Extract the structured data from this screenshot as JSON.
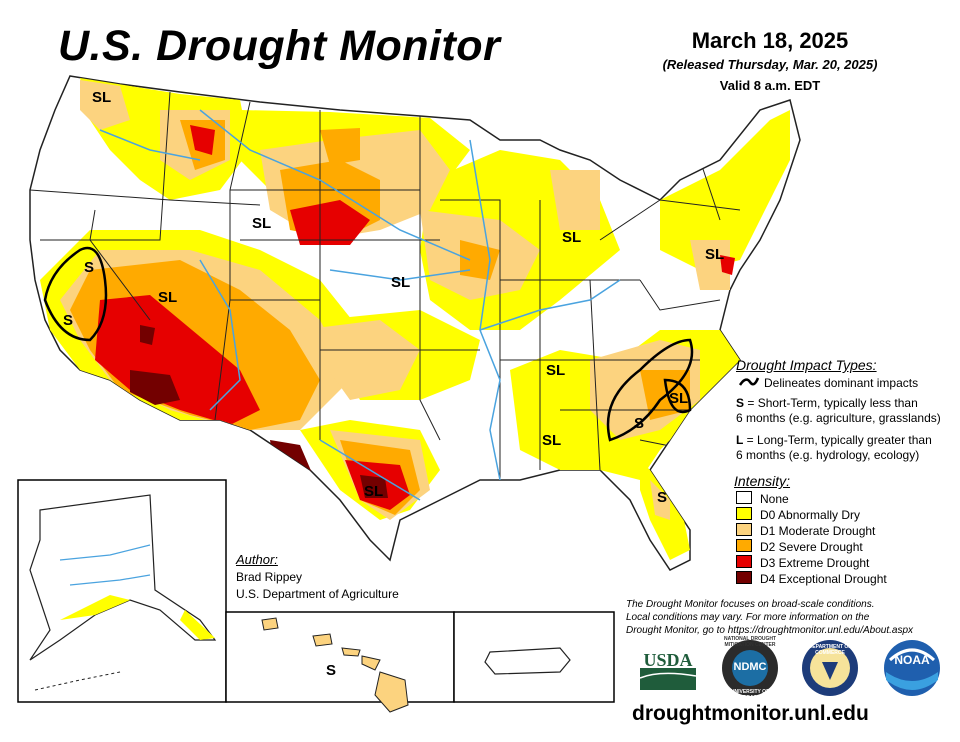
{
  "header": {
    "title": "U.S. Drought Monitor",
    "date": "March 18, 2025",
    "released": "(Released Thursday, Mar. 20, 2025)",
    "valid": "Valid 8 a.m. EDT"
  },
  "colors": {
    "none": "#ffffff",
    "d0": "#ffff00",
    "d1": "#fcd37f",
    "d2": "#ffaa00",
    "d3": "#e60000",
    "d4": "#730000",
    "rivers": "#4aa3df",
    "borders": "#222222"
  },
  "map_labels": {
    "sl_pacific_nw": "SL",
    "sl_wyoming": "SL",
    "sl_nevada": "SL",
    "sl_nebraska": "SL",
    "sl_michigan": "SL",
    "sl_northeast": "SL",
    "sl_mississippi": "SL",
    "sl_alabama": "SL",
    "sl_texas": "SL",
    "sl_carolina": "SL",
    "s_california_n": "S",
    "s_california_s": "S",
    "s_georgia": "S",
    "s_florida": "S",
    "s_hawaii": "S"
  },
  "impact_legend": {
    "heading": "Drought Impact Types:",
    "line_desc": "Delineates dominant impacts",
    "s_key": "S",
    "s_text_1": " = Short-Term, typically less than",
    "s_text_2": "6 months (e.g. agriculture, grasslands)",
    "l_key": "L",
    "l_text_1": " = Long-Term, typically greater than",
    "l_text_2": "6 months (e.g. hydrology, ecology)"
  },
  "intensity_legend": {
    "heading": "Intensity:",
    "items": [
      {
        "label": "None",
        "color": "#ffffff"
      },
      {
        "label": "D0 Abnormally Dry",
        "color": "#ffff00"
      },
      {
        "label": "D1 Moderate Drought",
        "color": "#fcd37f"
      },
      {
        "label": "D2 Severe Drought",
        "color": "#ffaa00"
      },
      {
        "label": "D3 Extreme Drought",
        "color": "#e60000"
      },
      {
        "label": "D4 Exceptional Drought",
        "color": "#730000"
      }
    ]
  },
  "author": {
    "heading": "Author:",
    "name": "Brad Rippey",
    "org": "U.S. Department of Agriculture"
  },
  "disclaimer": {
    "line1": "The Drought Monitor focuses on broad-scale conditions.",
    "line2": "Local conditions may vary. For more information on the",
    "line3": "Drought Monitor, go to https://droughtmonitor.unl.edu/About.aspx"
  },
  "logos": {
    "usda": "USDA",
    "ndmc": "NDMC",
    "noaa": "NOAA",
    "ndmc_ring": "NATIONAL DROUGHT MITIGATION CENTER",
    "ndmc_sub": "UNIVERSITY OF NEBRASKA",
    "commerce_ring": "DEPARTMENT OF COMMERCE"
  },
  "footer": {
    "url": "droughtmonitor.unl.edu"
  }
}
